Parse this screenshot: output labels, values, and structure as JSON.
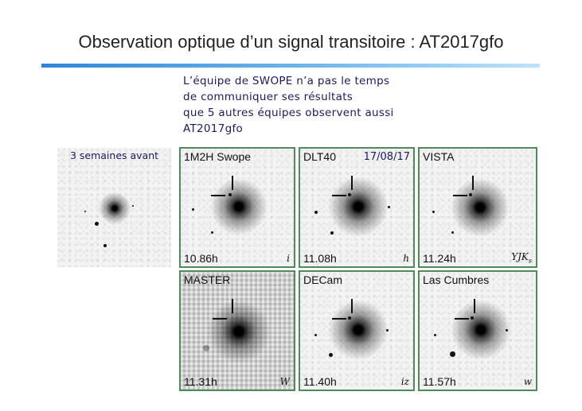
{
  "slide": {
    "title": "Observation optique d’un signal transitoire : AT2017gfo",
    "intro_lines": [
      "L’équipe de SWOPE n’a pas le temps",
      "de communiquer ses résultats",
      "que 5 autres équipes observent aussi",
      "AT2017gfo"
    ],
    "accent_color": "#2f86d8",
    "frame_color": "#4e8a5a"
  },
  "before_panel": {
    "caption": "3 semaines avant"
  },
  "panels": [
    {
      "team": "1M2H Swope",
      "time": "10.86h",
      "filter": "i",
      "date": ""
    },
    {
      "team": "DLT40",
      "time": "11.08h",
      "filter": "h",
      "date": "17/08/17"
    },
    {
      "team": "VISTA",
      "time": "11.24h",
      "filter": "YJK",
      "filter_sub": "s",
      "date": ""
    },
    {
      "team": "MASTER",
      "time": "11.31h",
      "filter": "W",
      "date": ""
    },
    {
      "team": "DECam",
      "time": "11.40h",
      "filter": "iz",
      "date": ""
    },
    {
      "team": "Las Cumbres",
      "time": "11.57h",
      "filter": "w",
      "date": ""
    }
  ]
}
